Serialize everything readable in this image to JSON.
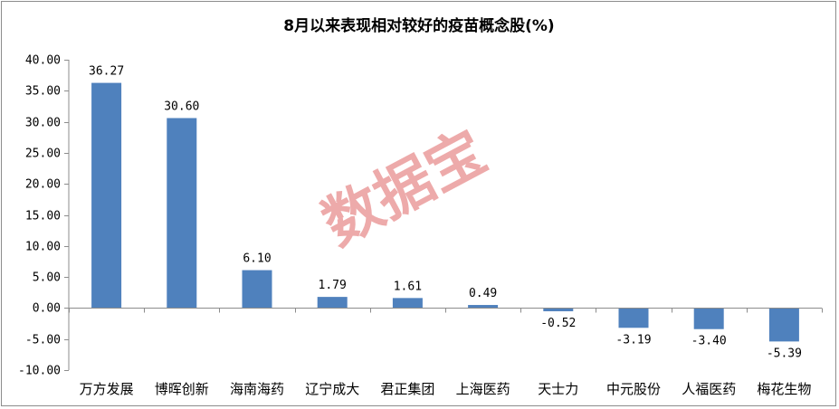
{
  "chart_data": {
    "type": "bar",
    "title": "8月以来表现相对较好的疫苗概念股(%)",
    "xlabel": "",
    "ylabel": "",
    "categories": [
      "万方发展",
      "博晖创新",
      "海南海药",
      "辽宁成大",
      "君正集团",
      "上海医药",
      "天士力",
      "中元股份",
      "人福医药",
      "梅花生物"
    ],
    "values": [
      36.27,
      30.6,
      6.1,
      1.79,
      1.61,
      0.49,
      -0.52,
      -3.19,
      -3.4,
      -5.39
    ],
    "data_labels": [
      "36.27",
      "30.60",
      "6.10",
      "1.79",
      "1.61",
      "0.49",
      "-0.52",
      "-3.19",
      "-3.40",
      "-5.39"
    ],
    "ylim": [
      -10,
      40
    ],
    "yticks": [
      "40.00",
      "35.00",
      "30.00",
      "25.00",
      "20.00",
      "15.00",
      "10.00",
      "5.00",
      "0.00",
      "-5.00",
      "-10.00"
    ],
    "ytick_values": [
      40,
      35,
      30,
      25,
      20,
      15,
      10,
      5,
      0,
      -5,
      -10
    ],
    "grid": false,
    "legend": "none",
    "bar_color": "#4f81bd",
    "watermark": "数据宝",
    "watermark_color": "#e06666"
  }
}
